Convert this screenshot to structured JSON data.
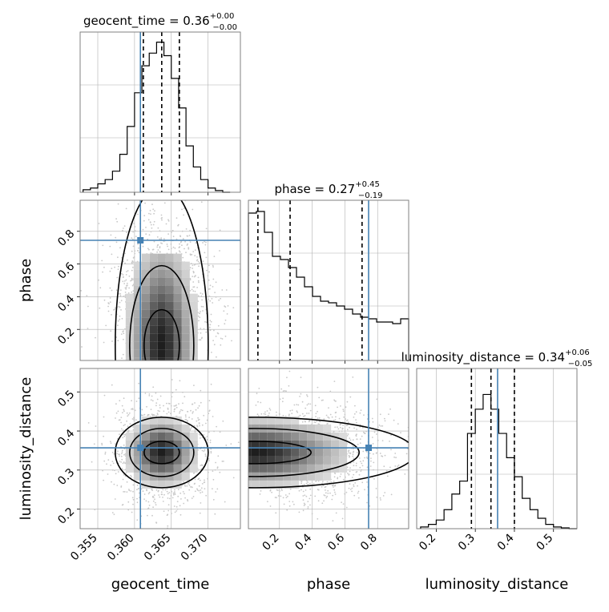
{
  "chart_data": {
    "type": "corner",
    "params": [
      "geocent_time",
      "phase",
      "luminosity_distance"
    ],
    "truths": [
      0.3608,
      0.745,
      0.357
    ],
    "truth_color": "#4682b4",
    "hist_color": "#000000",
    "grid": true,
    "diagonal": [
      {
        "param": "geocent_time",
        "title_name": "geocent_time",
        "title_median": "0.36",
        "title_plus": "+0.00",
        "title_minus": "−0.00",
        "range": [
          0.3526,
          0.3744
        ],
        "ticks": [
          0.355,
          0.36,
          0.365,
          0.37
        ],
        "tick_labels": [
          "0.355",
          "0.360",
          "0.365",
          "0.370"
        ],
        "quantiles": [
          0.3612,
          0.3637,
          0.3661
        ],
        "bins": [
          0.353,
          0.354,
          0.355,
          0.356,
          0.357,
          0.358,
          0.359,
          0.36,
          0.361,
          0.362,
          0.363,
          0.364,
          0.365,
          0.366,
          0.367,
          0.368,
          0.369,
          0.37,
          0.371,
          0.372,
          0.373
        ],
        "counts": [
          3,
          5,
          10,
          15,
          25,
          45,
          78,
          118,
          150,
          165,
          178,
          162,
          135,
          100,
          55,
          30,
          15,
          5,
          2,
          0
        ],
        "ymax": 190
      },
      {
        "param": "phase",
        "title_name": "phase",
        "title_median": "0.27",
        "title_plus": "+0.45",
        "title_minus": "−0.19",
        "range": [
          0.01,
          0.99
        ],
        "ticks": [
          0.2,
          0.4,
          0.6,
          0.8
        ],
        "tick_labels": [
          "0.2",
          "0.4",
          "0.6",
          "0.8"
        ],
        "quantiles": [
          0.068,
          0.265,
          0.705
        ],
        "bins": [
          0.01,
          0.059,
          0.108,
          0.157,
          0.206,
          0.255,
          0.304,
          0.353,
          0.402,
          0.451,
          0.5,
          0.549,
          0.598,
          0.647,
          0.696,
          0.745,
          0.794,
          0.843,
          0.892,
          0.941,
          0.99
        ],
        "counts": [
          92,
          93,
          80,
          65,
          63,
          58,
          52,
          46,
          40,
          37,
          36,
          34,
          32,
          29,
          27,
          26,
          24,
          24,
          23,
          26
        ],
        "ymax": 100
      },
      {
        "param": "luminosity_distance",
        "title_name": "luminosity_distance",
        "title_median": "0.34",
        "title_plus": "+0.06",
        "title_minus": "−0.05",
        "range": [
          0.15,
          0.56
        ],
        "ticks": [
          0.2,
          0.3,
          0.4,
          0.5
        ],
        "tick_labels": [
          "0.2",
          "0.3",
          "0.4",
          "0.5"
        ],
        "quantiles": [
          0.29,
          0.34,
          0.4
        ],
        "bins": [
          0.16,
          0.18,
          0.2,
          0.22,
          0.24,
          0.26,
          0.28,
          0.3,
          0.32,
          0.34,
          0.36,
          0.38,
          0.4,
          0.42,
          0.44,
          0.46,
          0.48,
          0.5,
          0.52,
          0.54,
          0.56
        ],
        "counts": [
          2,
          5,
          10,
          22,
          40,
          55,
          110,
          138,
          155,
          138,
          110,
          82,
          60,
          35,
          22,
          12,
          5,
          2,
          1,
          0
        ],
        "ymax": 185
      }
    ],
    "off_diagonal": [
      {
        "x": "geocent_time",
        "y": "phase",
        "ylim": [
          0.01,
          0.99
        ],
        "yticks": [
          0.2,
          0.4,
          0.6,
          0.8
        ],
        "ytick_labels": [
          "0.2",
          "0.4",
          "0.6",
          "0.8"
        ],
        "density_center": [
          0.3637,
          0.1
        ],
        "density_spread": [
          0.0025,
          0.35
        ]
      },
      {
        "x": "geocent_time",
        "y": "luminosity_distance",
        "ylim": [
          0.15,
          0.56
        ],
        "yticks": [
          0.2,
          0.3,
          0.4,
          0.5
        ],
        "ytick_labels": [
          "0.2",
          "0.3",
          "0.4",
          "0.5"
        ],
        "density_center": [
          0.3637,
          0.345
        ],
        "density_spread": [
          0.0025,
          0.05
        ]
      },
      {
        "x": "phase",
        "y": "luminosity_distance",
        "ylim": [
          0.15,
          0.56
        ],
        "density_center": [
          0.05,
          0.345
        ],
        "density_spread": [
          0.4,
          0.05
        ]
      }
    ]
  }
}
